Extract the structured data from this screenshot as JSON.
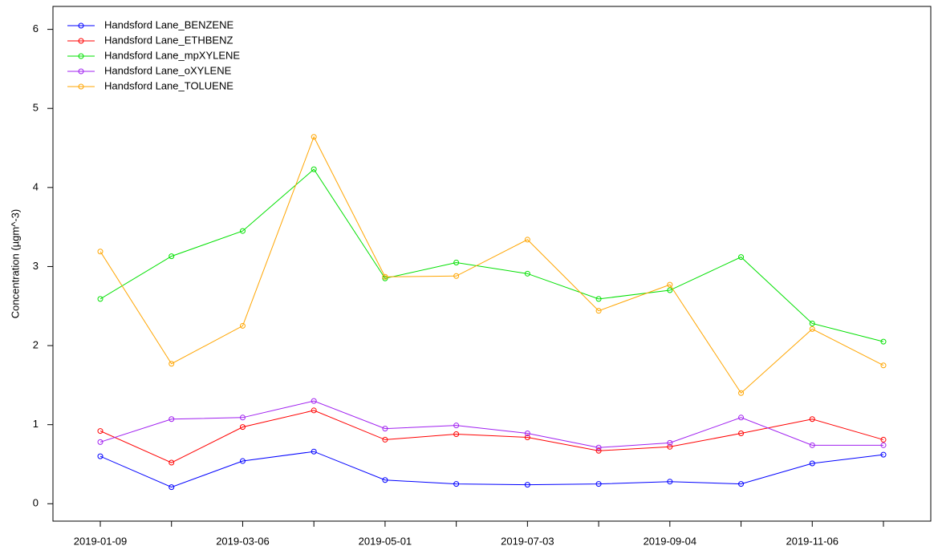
{
  "chart_data": {
    "type": "line",
    "y_label": "Concentration (µgm^-3)",
    "categories": [
      "2019-01-09",
      null,
      "2019-03-06",
      null,
      "2019-05-01",
      null,
      "2019-07-03",
      null,
      "2019-09-04",
      null,
      "2019-11-06",
      null
    ],
    "series": [
      {
        "name": "Handsford Lane_BENZENE",
        "color": "#0000ff",
        "values": [
          0.6,
          0.21,
          0.54,
          0.66,
          0.3,
          0.25,
          0.24,
          0.25,
          0.28,
          0.25,
          0.51,
          0.62
        ]
      },
      {
        "name": "Handsford Lane_ETHBENZ",
        "color": "#ff0000",
        "values": [
          0.92,
          0.52,
          0.97,
          1.18,
          0.81,
          0.88,
          0.84,
          0.67,
          0.72,
          0.89,
          1.07,
          0.81
        ]
      },
      {
        "name": "Handsford Lane_mpXYLENE",
        "color": "#00e000",
        "values": [
          2.59,
          3.13,
          3.45,
          4.23,
          2.85,
          3.05,
          2.91,
          2.59,
          2.7,
          3.12,
          2.28,
          2.05
        ]
      },
      {
        "name": "Handsford Lane_oXYLENE",
        "color": "#a020f0",
        "values": [
          0.78,
          1.07,
          1.09,
          1.3,
          0.95,
          0.99,
          0.89,
          0.71,
          0.77,
          1.09,
          0.74,
          0.74
        ]
      },
      {
        "name": "Handsford Lane_TOLUENE",
        "color": "#ffa500",
        "values": [
          3.19,
          1.77,
          2.25,
          4.64,
          2.87,
          2.88,
          3.34,
          2.44,
          2.77,
          1.4,
          2.21,
          1.75
        ]
      }
    ],
    "ylim": [
      -0.22,
      6.29
    ],
    "yticks": [
      0,
      1,
      2,
      3,
      4,
      5,
      6
    ],
    "legend": "top-left",
    "grid": false
  }
}
